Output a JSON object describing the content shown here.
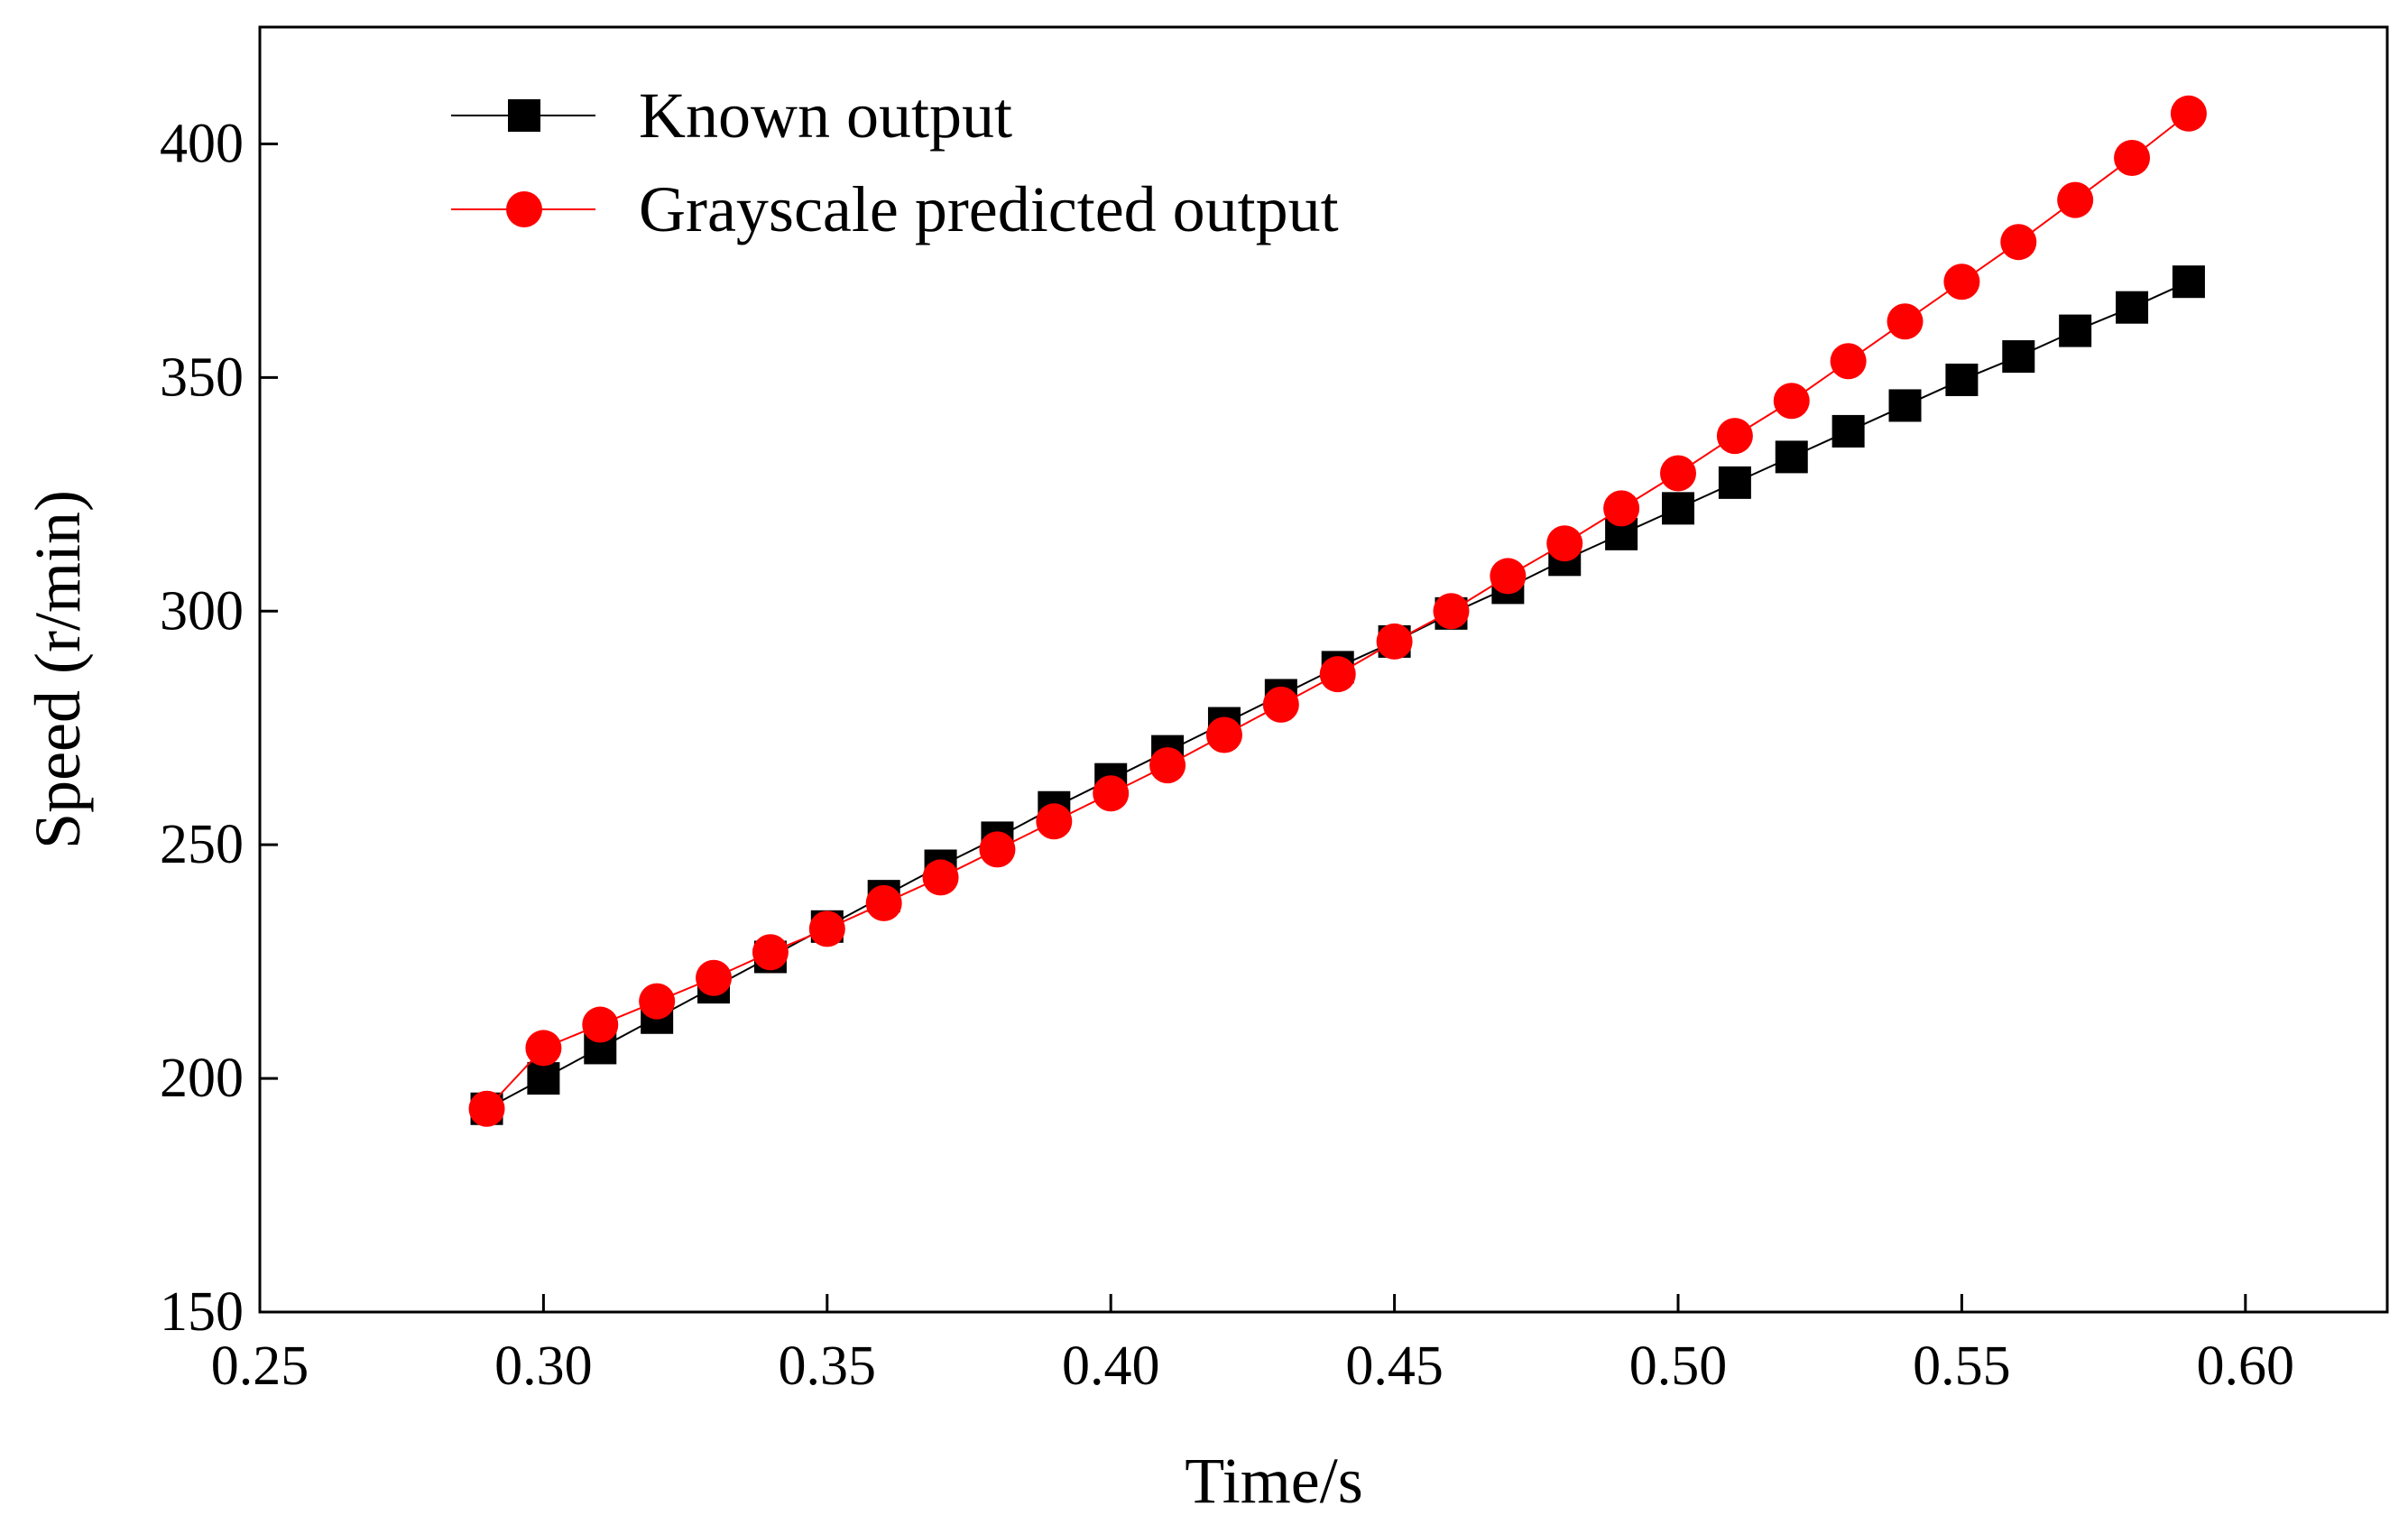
{
  "chart_data": {
    "type": "line",
    "title": "",
    "xlabel": "Time/s",
    "ylabel": "Speed (r/min)",
    "xlim": [
      0.25,
      0.625
    ],
    "ylim": [
      150,
      425
    ],
    "xticks": [
      0.25,
      0.3,
      0.35,
      0.4,
      0.45,
      0.5,
      0.55,
      0.6
    ],
    "xtick_labels": [
      "0.25",
      "0.30",
      "0.35",
      "0.40",
      "0.45",
      "0.50",
      "0.55",
      "0.60"
    ],
    "yticks": [
      150,
      200,
      250,
      300,
      350,
      400
    ],
    "ytick_labels": [
      "150",
      "200",
      "250",
      "300",
      "350",
      "400"
    ],
    "grid": false,
    "legend_position": "top-left",
    "x": [
      0.29,
      0.3,
      0.31,
      0.32,
      0.33,
      0.34,
      0.35,
      0.36,
      0.37,
      0.38,
      0.39,
      0.4,
      0.41,
      0.42,
      0.43,
      0.44,
      0.45,
      0.46,
      0.47,
      0.48,
      0.49,
      0.5,
      0.51,
      0.52,
      0.53,
      0.54,
      0.55,
      0.56,
      0.57,
      0.58,
      0.59
    ],
    "series": [
      {
        "name": "Known output",
        "color": "#000000",
        "marker": "square",
        "values": [
          193.5,
          200,
          206.5,
          213,
          219.5,
          226,
          232.5,
          239,
          245.5,
          251.5,
          258,
          264,
          270,
          276,
          282,
          288,
          293.5,
          299.5,
          305,
          311,
          316.5,
          322,
          327.5,
          333,
          338.5,
          344,
          349.5,
          354.5,
          360,
          365,
          370.5
        ]
      },
      {
        "name": "Grayscale predicted output",
        "color": "#ff0000",
        "marker": "circle",
        "values": [
          193.5,
          206.5,
          211.5,
          216.5,
          221.5,
          227,
          232,
          237.5,
          243,
          249,
          255,
          261,
          267,
          273.5,
          280,
          286.5,
          293.5,
          300,
          307.5,
          314.5,
          322,
          329.5,
          337.5,
          345,
          353.5,
          362,
          370.5,
          379,
          388,
          397,
          406.5
        ]
      }
    ]
  }
}
